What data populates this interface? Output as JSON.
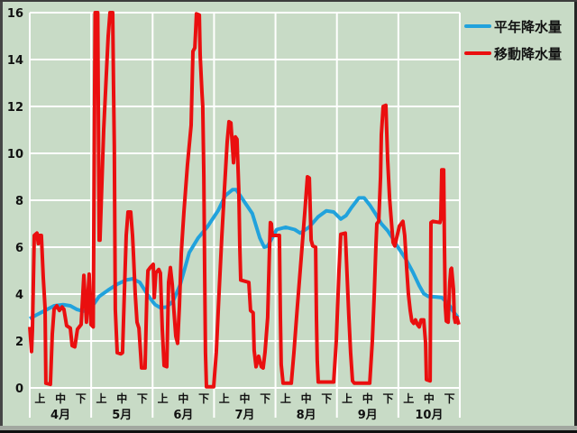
{
  "panel": {
    "background": "#c8dbc6",
    "border_dark": "#3c3c3c",
    "grid_color": "#ffffff",
    "text_color": "#111111"
  },
  "legend": {
    "items": [
      {
        "label": "平年降水量",
        "color": "#21a2dc"
      },
      {
        "label": "移動降水量",
        "color": "#ea0f0f"
      }
    ]
  },
  "chart_data": {
    "type": "line",
    "title": "",
    "xlabel": "",
    "ylabel": "",
    "ylim": [
      0,
      16
    ],
    "y_ticks": [
      0,
      2,
      4,
      6,
      8,
      10,
      12,
      14,
      16
    ],
    "grid": true,
    "grid_color": "#ffffff",
    "background": "#c8dbc6",
    "legend_position": "top-right-outside",
    "x_axis": {
      "period_unit_total": 21,
      "months": [
        {
          "label": "4月",
          "periods": [
            "上",
            "中",
            "下"
          ]
        },
        {
          "label": "5月",
          "periods": [
            "上",
            "中",
            "下"
          ]
        },
        {
          "label": "6月",
          "periods": [
            "上",
            "中",
            "下"
          ]
        },
        {
          "label": "7月",
          "periods": [
            "上",
            "中",
            "下"
          ]
        },
        {
          "label": "8月",
          "periods": [
            "上",
            "中",
            "下"
          ]
        },
        {
          "label": "9月",
          "periods": [
            "上",
            "中",
            "下"
          ]
        },
        {
          "label": "10月",
          "periods": [
            "上",
            "中",
            "下"
          ]
        }
      ]
    },
    "series": [
      {
        "name": "平年降水量",
        "color": "#21a2dc",
        "width": 4,
        "points": [
          [
            0,
            2.95
          ],
          [
            0.31,
            3.1
          ],
          [
            0.75,
            3.3
          ],
          [
            1.19,
            3.5
          ],
          [
            1.63,
            3.55
          ],
          [
            1.98,
            3.5
          ],
          [
            2.29,
            3.35
          ],
          [
            2.6,
            3.27
          ],
          [
            2.95,
            3.35
          ],
          [
            3.39,
            3.9
          ],
          [
            3.83,
            4.17
          ],
          [
            4.27,
            4.42
          ],
          [
            4.71,
            4.6
          ],
          [
            5.02,
            4.65
          ],
          [
            5.37,
            4.5
          ],
          [
            5.81,
            3.9
          ],
          [
            6.12,
            3.55
          ],
          [
            6.38,
            3.42
          ],
          [
            6.69,
            3.45
          ],
          [
            7.0,
            3.7
          ],
          [
            7.35,
            4.4
          ],
          [
            7.79,
            5.77
          ],
          [
            8.23,
            6.4
          ],
          [
            8.67,
            6.86
          ],
          [
            9.2,
            7.56
          ],
          [
            9.55,
            8.2
          ],
          [
            9.9,
            8.45
          ],
          [
            10.08,
            8.45
          ],
          [
            10.43,
            8.0
          ],
          [
            10.87,
            7.43
          ],
          [
            11.23,
            6.4
          ],
          [
            11.45,
            6.0
          ],
          [
            11.62,
            6.05
          ],
          [
            11.84,
            6.4
          ],
          [
            12.06,
            6.75
          ],
          [
            12.5,
            6.85
          ],
          [
            12.94,
            6.75
          ],
          [
            13.21,
            6.6
          ],
          [
            13.65,
            6.86
          ],
          [
            14.09,
            7.3
          ],
          [
            14.48,
            7.55
          ],
          [
            14.84,
            7.5
          ],
          [
            15.19,
            7.2
          ],
          [
            15.45,
            7.35
          ],
          [
            15.72,
            7.7
          ],
          [
            16.07,
            8.1
          ],
          [
            16.33,
            8.1
          ],
          [
            16.6,
            7.8
          ],
          [
            16.9,
            7.4
          ],
          [
            17.17,
            7.0
          ],
          [
            17.48,
            6.7
          ],
          [
            17.74,
            6.35
          ],
          [
            17.92,
            6.08
          ],
          [
            18.36,
            5.5
          ],
          [
            18.71,
            4.93
          ],
          [
            19.02,
            4.36
          ],
          [
            19.24,
            4.02
          ],
          [
            19.46,
            3.9
          ],
          [
            19.81,
            3.88
          ],
          [
            20.12,
            3.85
          ],
          [
            20.43,
            3.6
          ],
          [
            20.65,
            3.3
          ],
          [
            20.91,
            3.0
          ]
        ]
      },
      {
        "name": "移動降水量",
        "color": "#ea0f0f",
        "width": 4,
        "points": [
          [
            0,
            2.6
          ],
          [
            0.09,
            1.55
          ],
          [
            0.13,
            2.5
          ],
          [
            0.22,
            6.5
          ],
          [
            0.35,
            6.6
          ],
          [
            0.42,
            6.15
          ],
          [
            0.48,
            6.5
          ],
          [
            0.57,
            6.5
          ],
          [
            0.66,
            4.7
          ],
          [
            0.75,
            3.4
          ],
          [
            0.79,
            0.2
          ],
          [
            1.01,
            0.15
          ],
          [
            1.1,
            2.3
          ],
          [
            1.19,
            3.35
          ],
          [
            1.32,
            3.5
          ],
          [
            1.45,
            3.3
          ],
          [
            1.58,
            3.45
          ],
          [
            1.67,
            3.35
          ],
          [
            1.8,
            2.65
          ],
          [
            1.98,
            2.55
          ],
          [
            2.07,
            1.8
          ],
          [
            2.2,
            1.75
          ],
          [
            2.33,
            2.5
          ],
          [
            2.51,
            2.7
          ],
          [
            2.64,
            4.8
          ],
          [
            2.77,
            2.8
          ],
          [
            2.9,
            4.85
          ],
          [
            2.99,
            2.7
          ],
          [
            3.1,
            2.6
          ],
          [
            3.19,
            16
          ],
          [
            3.32,
            16
          ],
          [
            3.39,
            6.3
          ],
          [
            3.43,
            6.3
          ],
          [
            3.61,
            11.0
          ],
          [
            3.83,
            15.0
          ],
          [
            3.92,
            16
          ],
          [
            4.05,
            16
          ],
          [
            4.09,
            12.9
          ],
          [
            4.13,
            10.3
          ],
          [
            4.18,
            3.35
          ],
          [
            4.27,
            1.5
          ],
          [
            4.45,
            1.45
          ],
          [
            4.53,
            1.5
          ],
          [
            4.62,
            4.0
          ],
          [
            4.71,
            6.5
          ],
          [
            4.8,
            7.5
          ],
          [
            4.93,
            7.5
          ],
          [
            5.02,
            6.5
          ],
          [
            5.06,
            5.8
          ],
          [
            5.15,
            4.0
          ],
          [
            5.24,
            2.8
          ],
          [
            5.33,
            2.55
          ],
          [
            5.41,
            1.5
          ],
          [
            5.46,
            0.85
          ],
          [
            5.63,
            0.85
          ],
          [
            5.72,
            4.0
          ],
          [
            5.77,
            5.0
          ],
          [
            5.9,
            5.15
          ],
          [
            6.03,
            5.27
          ],
          [
            6.08,
            3.85
          ],
          [
            6.16,
            4.9
          ],
          [
            6.3,
            5.05
          ],
          [
            6.38,
            4.9
          ],
          [
            6.47,
            2.5
          ],
          [
            6.56,
            0.95
          ],
          [
            6.69,
            0.9
          ],
          [
            6.78,
            4.5
          ],
          [
            6.87,
            5.13
          ],
          [
            6.96,
            4.4
          ],
          [
            7.04,
            3.3
          ],
          [
            7.13,
            2.2
          ],
          [
            7.22,
            1.9
          ],
          [
            7.31,
            3.5
          ],
          [
            7.4,
            5.77
          ],
          [
            7.53,
            7.5
          ],
          [
            7.7,
            9.5
          ],
          [
            7.88,
            11.2
          ],
          [
            7.97,
            14.35
          ],
          [
            8.06,
            14.5
          ],
          [
            8.1,
            15.2
          ],
          [
            8.14,
            15.95
          ],
          [
            8.28,
            15.9
          ],
          [
            8.32,
            14.2
          ],
          [
            8.41,
            12.6
          ],
          [
            8.45,
            12.0
          ],
          [
            8.5,
            9.0
          ],
          [
            8.54,
            5.0
          ],
          [
            8.58,
            1.5
          ],
          [
            8.63,
            0.05
          ],
          [
            8.98,
            0.05
          ],
          [
            9.11,
            1.5
          ],
          [
            9.24,
            4.0
          ],
          [
            9.38,
            6.5
          ],
          [
            9.51,
            8.5
          ],
          [
            9.64,
            10.5
          ],
          [
            9.73,
            11.35
          ],
          [
            9.82,
            11.3
          ],
          [
            9.95,
            9.6
          ],
          [
            10.04,
            10.7
          ],
          [
            10.12,
            10.6
          ],
          [
            10.21,
            8.4
          ],
          [
            10.26,
            6.0
          ],
          [
            10.3,
            4.6
          ],
          [
            10.7,
            4.5
          ],
          [
            10.78,
            3.3
          ],
          [
            10.91,
            3.2
          ],
          [
            10.96,
            1.6
          ],
          [
            11.05,
            0.9
          ],
          [
            11.18,
            1.35
          ],
          [
            11.31,
            0.9
          ],
          [
            11.4,
            0.85
          ],
          [
            11.49,
            1.54
          ],
          [
            11.62,
            3.0
          ],
          [
            11.71,
            6.0
          ],
          [
            11.75,
            7.05
          ],
          [
            11.8,
            7.0
          ],
          [
            11.84,
            6.5
          ],
          [
            12.19,
            6.5
          ],
          [
            12.24,
            3.0
          ],
          [
            12.28,
            1.0
          ],
          [
            12.37,
            0.2
          ],
          [
            12.77,
            0.2
          ],
          [
            12.9,
            1.5
          ],
          [
            13.07,
            3.5
          ],
          [
            13.25,
            5.5
          ],
          [
            13.43,
            7.5
          ],
          [
            13.56,
            9.0
          ],
          [
            13.65,
            8.95
          ],
          [
            13.74,
            6.3
          ],
          [
            13.82,
            6.05
          ],
          [
            13.96,
            6.0
          ],
          [
            14.0,
            3.0
          ],
          [
            14.04,
            1.15
          ],
          [
            14.09,
            0.25
          ],
          [
            14.84,
            0.25
          ],
          [
            14.97,
            2.0
          ],
          [
            15.1,
            5.0
          ],
          [
            15.19,
            6.55
          ],
          [
            15.41,
            6.6
          ],
          [
            15.5,
            4.7
          ],
          [
            15.58,
            3.08
          ],
          [
            15.67,
            1.5
          ],
          [
            15.76,
            0.3
          ],
          [
            15.85,
            0.2
          ],
          [
            16.6,
            0.2
          ],
          [
            16.73,
            2.0
          ],
          [
            16.82,
            3.97
          ],
          [
            16.9,
            6.0
          ],
          [
            16.95,
            7.0
          ],
          [
            17.04,
            7.1
          ],
          [
            17.13,
            9.0
          ],
          [
            17.17,
            10.8
          ],
          [
            17.26,
            12.0
          ],
          [
            17.39,
            12.05
          ],
          [
            17.48,
            9.7
          ],
          [
            17.57,
            8.1
          ],
          [
            17.66,
            7.1
          ],
          [
            17.74,
            6.2
          ],
          [
            17.83,
            6.05
          ],
          [
            17.92,
            6.4
          ],
          [
            18.05,
            6.9
          ],
          [
            18.22,
            7.1
          ],
          [
            18.31,
            6.5
          ],
          [
            18.4,
            5.2
          ],
          [
            18.49,
            4.0
          ],
          [
            18.58,
            3.3
          ],
          [
            18.66,
            2.85
          ],
          [
            18.75,
            2.75
          ],
          [
            18.84,
            2.9
          ],
          [
            18.93,
            2.7
          ],
          [
            19.02,
            2.6
          ],
          [
            19.11,
            2.9
          ],
          [
            19.24,
            2.9
          ],
          [
            19.33,
            1.9
          ],
          [
            19.37,
            0.35
          ],
          [
            19.55,
            0.3
          ],
          [
            19.59,
            7.05
          ],
          [
            19.68,
            7.1
          ],
          [
            20.03,
            7.05
          ],
          [
            20.07,
            7.2
          ],
          [
            20.12,
            9.3
          ],
          [
            20.21,
            9.3
          ],
          [
            20.25,
            6.0
          ],
          [
            20.29,
            3.5
          ],
          [
            20.34,
            2.85
          ],
          [
            20.43,
            2.8
          ],
          [
            20.51,
            4.5
          ],
          [
            20.56,
            5.05
          ],
          [
            20.6,
            5.1
          ],
          [
            20.69,
            4.2
          ],
          [
            20.73,
            3.0
          ],
          [
            20.78,
            2.8
          ],
          [
            20.86,
            3.0
          ],
          [
            20.95,
            2.7
          ]
        ]
      }
    ]
  }
}
